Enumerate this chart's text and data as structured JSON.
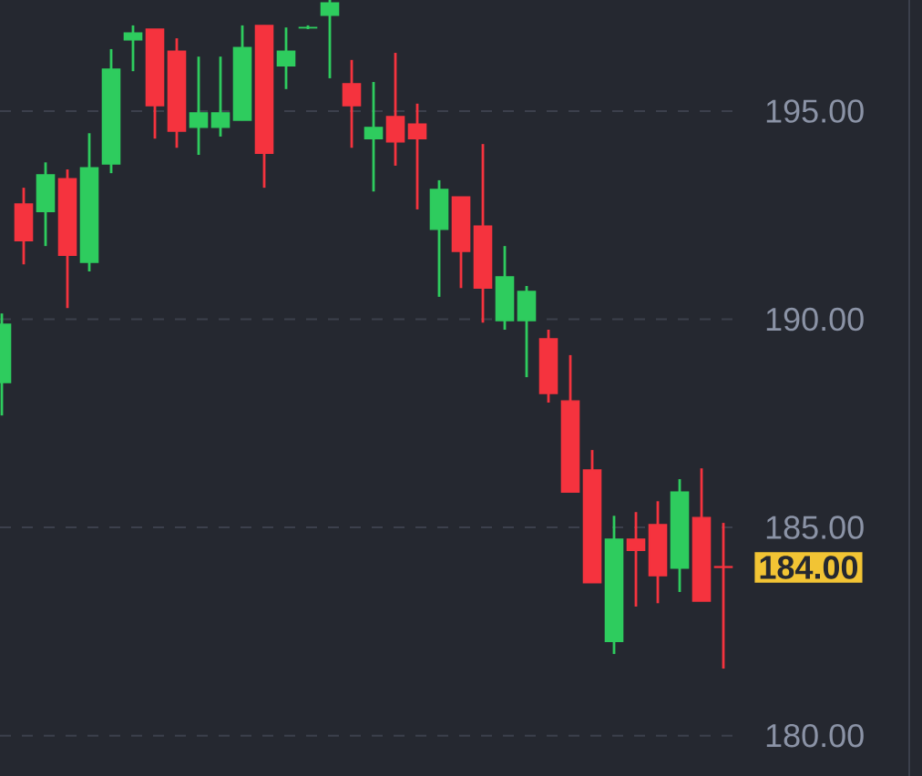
{
  "chart_data": {
    "type": "candlestick",
    "categories": [
      null,
      null,
      null,
      null,
      null,
      null,
      null,
      null,
      null,
      null,
      null,
      null,
      null,
      null,
      null,
      null,
      null,
      null,
      null,
      null,
      null,
      null,
      null,
      null,
      null,
      null,
      null,
      null,
      null,
      null,
      null,
      null,
      null,
      null
    ],
    "ohlc": [
      [
        188.48,
        190.14,
        187.69,
        189.88
      ],
      [
        192.77,
        193.16,
        191.32,
        191.89
      ],
      [
        192.59,
        193.77,
        191.76,
        193.47
      ],
      [
        193.38,
        193.6,
        190.27,
        191.54
      ],
      [
        191.37,
        194.47,
        191.15,
        193.64
      ],
      [
        193.73,
        196.49,
        193.51,
        196.01
      ],
      [
        196.71,
        197.06,
        195.96,
        196.88
      ],
      [
        196.97,
        196.97,
        194.34,
        195.13
      ],
      [
        196.44,
        196.75,
        194.12,
        194.52
      ],
      [
        194.61,
        196.31,
        193.95,
        194.96
      ],
      [
        194.61,
        196.31,
        194.39,
        194.96
      ],
      [
        194.78,
        197.06,
        194.78,
        196.53
      ],
      [
        197.06,
        197.06,
        193.16,
        193.99
      ],
      [
        196.09,
        197.01,
        195.53,
        196.44
      ],
      [
        197.0,
        197.06,
        196.97,
        197.01
      ],
      [
        197.3,
        197.67,
        195.79,
        197.6
      ],
      [
        195.66,
        196.23,
        194.12,
        195.13
      ],
      [
        194.34,
        195.7,
        193.07,
        194.61
      ],
      [
        194.87,
        196.4,
        193.69,
        194.26
      ],
      [
        194.69,
        195.18,
        192.64,
        194.34
      ],
      [
        192.16,
        193.34,
        190.54,
        193.12
      ],
      [
        192.94,
        192.94,
        190.75,
        191.63
      ],
      [
        192.24,
        194.21,
        189.92,
        190.75
      ],
      [
        189.97,
        191.76,
        189.75,
        191.02
      ],
      [
        189.97,
        190.8,
        188.61,
        190.67
      ],
      [
        189.53,
        189.75,
        188.0,
        188.22
      ],
      [
        188.04,
        189.14,
        185.85,
        185.85
      ],
      [
        186.38,
        186.86,
        183.67,
        183.67
      ],
      [
        182.26,
        185.28,
        181.96,
        184.72
      ],
      [
        184.72,
        185.37,
        183.1,
        184.45
      ],
      [
        185.07,
        185.63,
        183.18,
        183.84
      ],
      [
        184.02,
        186.16,
        183.45,
        185.85
      ],
      [
        185.24,
        186.42,
        183.23,
        183.23
      ],
      [
        184.06,
        185.11,
        181.61,
        184.04
      ]
    ],
    "colors": [
      "#2ecc5e",
      "#f5333e",
      "#2ecc5e",
      "#f5333e",
      "#2ecc5e",
      "#2ecc5e",
      "#2ecc5e",
      "#f5333e",
      "#f5333e",
      "#2ecc5e",
      "#2ecc5e",
      "#2ecc5e",
      "#f5333e",
      "#2ecc5e",
      "#2ecc5e",
      "#2ecc5e",
      "#f5333e",
      "#2ecc5e",
      "#f5333e",
      "#f5333e",
      "#2ecc5e",
      "#f5333e",
      "#f5333e",
      "#2ecc5e",
      "#2ecc5e",
      "#f5333e",
      "#f5333e",
      "#f5333e",
      "#2ecc5e",
      "#f5333e",
      "#f5333e",
      "#2ecc5e",
      "#f5333e",
      "#f5333e"
    ],
    "ylim": [
      179.03,
      197.67
    ],
    "yticks": [
      {
        "value": 180,
        "label": "180.00"
      },
      {
        "value": 185,
        "label": "185.00"
      },
      {
        "value": 190,
        "label": "190.00"
      },
      {
        "value": 195,
        "label": "195.00"
      }
    ],
    "grid": "y",
    "tick_labels": "y",
    "annotations": [
      "184.00"
    ]
  }
}
